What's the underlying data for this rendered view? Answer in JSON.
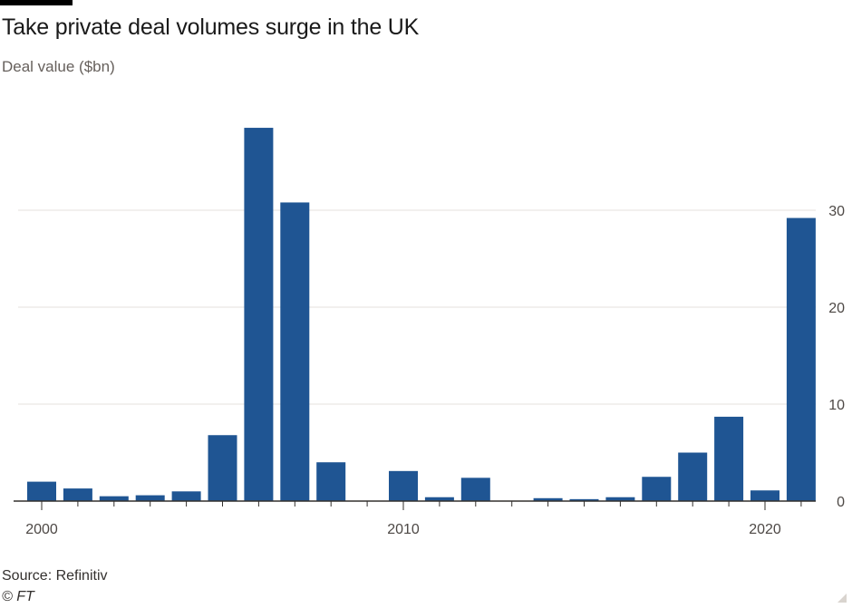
{
  "header": {
    "title": "Take private deal volumes surge in the UK",
    "subtitle": "Deal value ($bn)"
  },
  "footer": {
    "source": "Source: Refinitiv",
    "copyright": "© FT"
  },
  "colors": {
    "bar": "#1f5593",
    "grid": "#e6e2de",
    "axis": "#33302e",
    "tick_text": "#4d4845"
  },
  "chart_data": {
    "type": "bar",
    "title": "Take private deal volumes surge in the UK",
    "ylabel": "Deal value ($bn)",
    "xlabel": "",
    "categories": [
      "2000",
      "2001",
      "2002",
      "2003",
      "2004",
      "2005",
      "2006",
      "2007",
      "2008",
      "2009",
      "2010",
      "2011",
      "2012",
      "2013",
      "2014",
      "2015",
      "2016",
      "2017",
      "2018",
      "2019",
      "2020",
      "2021"
    ],
    "values": [
      2.0,
      1.3,
      0.5,
      0.6,
      1.0,
      6.8,
      38.5,
      30.8,
      4.0,
      0.0,
      3.1,
      0.4,
      2.4,
      0.0,
      0.3,
      0.2,
      0.4,
      2.5,
      5.0,
      8.7,
      1.1,
      29.2
    ],
    "ylim": [
      0,
      40
    ],
    "yticks": [
      "0",
      "10",
      "20",
      "30"
    ],
    "xtick_labels": [
      "2000",
      "2010",
      "2020"
    ],
    "y_axis_position": "right",
    "grid": true
  }
}
